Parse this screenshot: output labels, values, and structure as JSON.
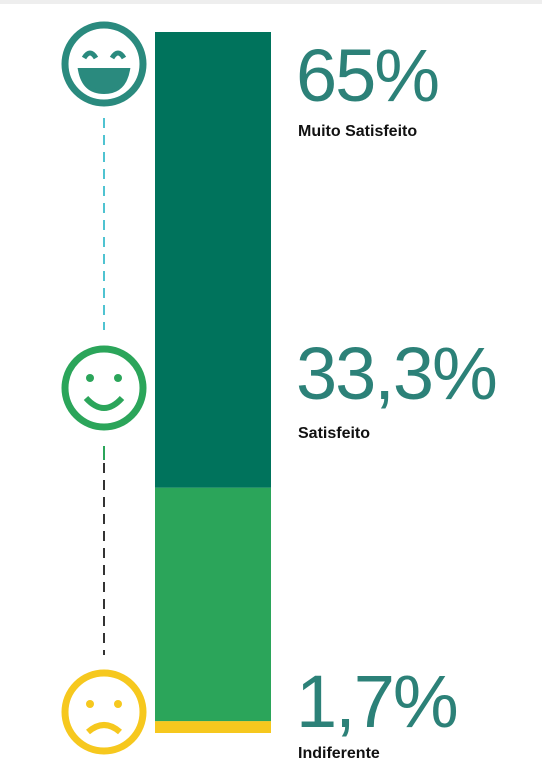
{
  "chart_data": {
    "type": "stacked_bar",
    "categories": [
      "Muito Satisfeito",
      "Satisfeito",
      "Indiferente"
    ],
    "values": [
      65,
      33.3,
      1.7
    ],
    "value_labels": [
      "65%",
      "33,3%",
      "1,7%"
    ],
    "colors": [
      "#00735c",
      "#2ba55a",
      "#f6c81e"
    ]
  }
}
